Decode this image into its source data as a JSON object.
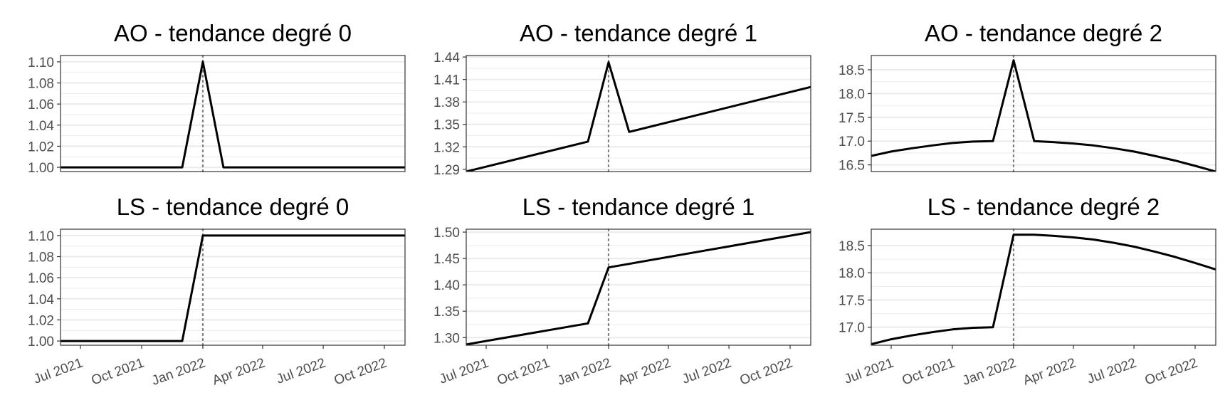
{
  "chart_data": [
    {
      "type": "line",
      "title": "AO - tendance degré 0",
      "ylim": [
        0.996,
        1.106
      ],
      "yticks": [
        1.0,
        1.02,
        1.04,
        1.06,
        1.08,
        1.1
      ],
      "ytick_labels": [
        "1.00",
        "1.02",
        "1.04",
        "1.06",
        "1.08",
        "1.10"
      ],
      "event_date": "2022-01-01",
      "x": [
        "2021-06-01",
        "2021-12-01",
        "2022-01-01",
        "2022-02-01",
        "2022-11-01"
      ],
      "values": [
        1.0,
        1.0,
        1.1,
        1.0,
        1.0
      ]
    },
    {
      "type": "line",
      "title": "AO - tendance degré 1",
      "ylim": [
        1.287,
        1.442
      ],
      "yticks": [
        1.29,
        1.32,
        1.35,
        1.38,
        1.41,
        1.44
      ],
      "ytick_labels": [
        "1.29",
        "1.32",
        "1.35",
        "1.38",
        "1.41",
        "1.44"
      ],
      "event_date": "2022-01-01",
      "x": [
        "2021-06-01",
        "2021-12-01",
        "2022-01-01",
        "2022-02-01",
        "2022-11-01"
      ],
      "values": [
        1.287,
        1.327,
        1.433,
        1.34,
        1.4
      ]
    },
    {
      "type": "line",
      "title": "AO - tendance degré 2",
      "ylim": [
        16.36,
        18.8
      ],
      "yticks": [
        16.5,
        17.0,
        17.5,
        18.0,
        18.5
      ],
      "ytick_labels": [
        "16.5",
        "17.0",
        "17.5",
        "18.0",
        "18.5"
      ],
      "event_date": "2022-01-01",
      "x": [
        "2021-06-01",
        "2021-07-01",
        "2021-08-01",
        "2021-09-01",
        "2021-10-01",
        "2021-11-01",
        "2021-12-01",
        "2022-01-01",
        "2022-02-01",
        "2022-03-01",
        "2022-04-01",
        "2022-05-01",
        "2022-06-01",
        "2022-07-01",
        "2022-08-01",
        "2022-09-01",
        "2022-10-01",
        "2022-11-01"
      ],
      "values": [
        16.69,
        16.78,
        16.85,
        16.91,
        16.96,
        16.99,
        17.0,
        18.7,
        17.0,
        16.98,
        16.95,
        16.91,
        16.85,
        16.78,
        16.69,
        16.59,
        16.48,
        16.36
      ]
    },
    {
      "type": "line",
      "title": "LS - tendance degré 0",
      "ylim": [
        0.996,
        1.106
      ],
      "yticks": [
        1.0,
        1.02,
        1.04,
        1.06,
        1.08,
        1.1
      ],
      "ytick_labels": [
        "1.00",
        "1.02",
        "1.04",
        "1.06",
        "1.08",
        "1.10"
      ],
      "event_date": "2022-01-01",
      "x": [
        "2021-06-01",
        "2021-12-01",
        "2022-01-01",
        "2022-11-01"
      ],
      "values": [
        1.0,
        1.0,
        1.1,
        1.1
      ],
      "xtick_labels": [
        "Jul 2021",
        "Oct 2021",
        "Jan 2022",
        "Apr 2022",
        "Jul 2022",
        "Oct 2022"
      ],
      "xtick_dates": [
        "2021-07-01",
        "2021-10-01",
        "2022-01-01",
        "2022-04-01",
        "2022-07-01",
        "2022-10-01"
      ]
    },
    {
      "type": "line",
      "title": "LS - tendance degré 1",
      "ylim": [
        1.2855,
        1.5055
      ],
      "yticks": [
        1.3,
        1.35,
        1.4,
        1.45,
        1.5
      ],
      "ytick_labels": [
        "1.30",
        "1.35",
        "1.40",
        "1.45",
        "1.50"
      ],
      "event_date": "2022-01-01",
      "x": [
        "2021-06-01",
        "2021-12-01",
        "2022-01-01",
        "2022-11-01"
      ],
      "values": [
        1.287,
        1.327,
        1.433,
        1.5
      ],
      "xtick_labels": [
        "Jul 2021",
        "Oct 2021",
        "Jan 2022",
        "Apr 2022",
        "Jul 2022",
        "Oct 2022"
      ],
      "xtick_dates": [
        "2021-07-01",
        "2021-10-01",
        "2022-01-01",
        "2022-04-01",
        "2022-07-01",
        "2022-10-01"
      ]
    },
    {
      "type": "line",
      "title": "LS - tendance degré 2",
      "ylim": [
        16.67,
        18.8
      ],
      "yticks": [
        17.0,
        17.5,
        18.0,
        18.5
      ],
      "ytick_labels": [
        "17.0",
        "17.5",
        "18.0",
        "18.5"
      ],
      "event_date": "2022-01-01",
      "x": [
        "2021-06-01",
        "2021-07-01",
        "2021-08-01",
        "2021-09-01",
        "2021-10-01",
        "2021-11-01",
        "2021-12-01",
        "2022-01-01",
        "2022-02-01",
        "2022-03-01",
        "2022-04-01",
        "2022-05-01",
        "2022-06-01",
        "2022-07-01",
        "2022-08-01",
        "2022-09-01",
        "2022-10-01",
        "2022-11-01"
      ],
      "values": [
        16.69,
        16.78,
        16.85,
        16.91,
        16.96,
        16.99,
        17.0,
        18.7,
        18.7,
        18.68,
        18.65,
        18.61,
        18.55,
        18.48,
        18.39,
        18.29,
        18.18,
        18.06
      ],
      "xtick_labels": [
        "Jul 2021",
        "Oct 2021",
        "Jan 2022",
        "Apr 2022",
        "Jul 2022",
        "Oct 2022"
      ],
      "xtick_dates": [
        "2021-07-01",
        "2021-10-01",
        "2022-01-01",
        "2022-04-01",
        "2022-07-01",
        "2022-10-01"
      ]
    }
  ]
}
